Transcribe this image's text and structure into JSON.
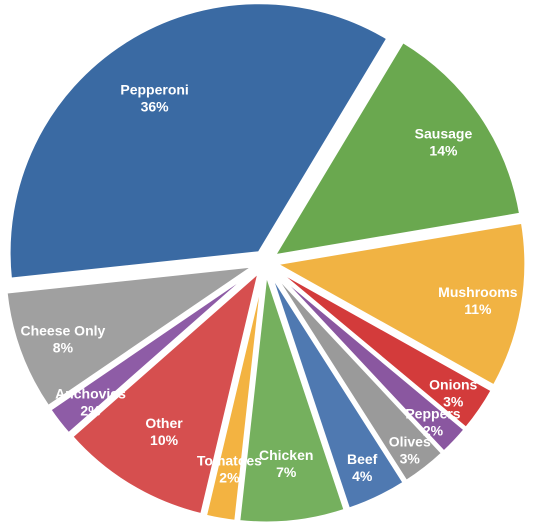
{
  "chart_data": {
    "type": "pie",
    "slices": [
      {
        "label": "Sausage",
        "value": 14,
        "pct_label": "14%",
        "color": "#6aa84f"
      },
      {
        "label": "Mushrooms",
        "value": 11,
        "pct_label": "11%",
        "color": "#f1b343"
      },
      {
        "label": "Onions",
        "value": 3,
        "pct_label": "3%",
        "color": "#d33b3b"
      },
      {
        "label": "Peppers",
        "value": 2,
        "pct_label": "2%",
        "color": "#8a57a0"
      },
      {
        "label": "Olives",
        "value": 3,
        "pct_label": "3%",
        "color": "#9a9a9a"
      },
      {
        "label": "Beef",
        "value": 4,
        "pct_label": "4%",
        "color": "#4f79b1"
      },
      {
        "label": "Chicken",
        "value": 7,
        "pct_label": "7%",
        "color": "#75b05e"
      },
      {
        "label": "Tomatoes",
        "value": 2,
        "pct_label": "2%",
        "color": "#f3b341"
      },
      {
        "label": "Other",
        "value": 10,
        "pct_label": "10%",
        "color": "#d64f4f"
      },
      {
        "label": "Anchovies",
        "value": 2,
        "pct_label": "2%",
        "color": "#8e5ca6"
      },
      {
        "label": "Cheese Only",
        "value": 8,
        "pct_label": "8%",
        "color": "#a0a0a0"
      },
      {
        "label": "Pepperoni",
        "value": 36,
        "pct_label": "36%",
        "color": "#3a6aa3"
      }
    ]
  }
}
